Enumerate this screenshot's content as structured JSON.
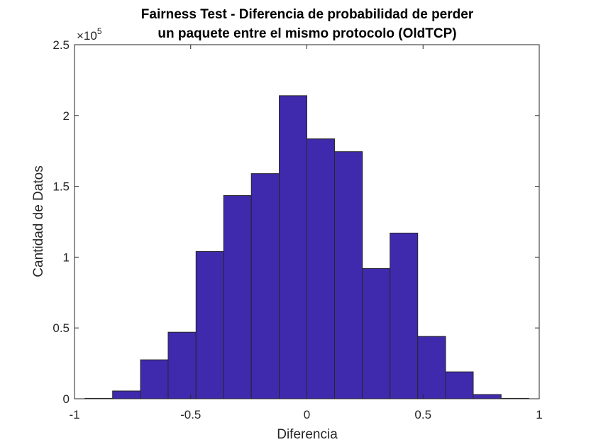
{
  "chart_data": {
    "type": "histogram",
    "title": [
      "Fairness Test - Diferencia de probabilidad de perder",
      "un paquete entre el mismo protocolo (OldTCP)"
    ],
    "xlabel": "Diferencia",
    "ylabel": "Cantidad de Datos",
    "y_exponent_base": "×10",
    "y_exponent_power": "5",
    "xlim": [
      -1,
      1
    ],
    "ylim": [
      0,
      2.5
    ],
    "x_ticks": [
      -1,
      -0.5,
      0,
      0.5,
      1
    ],
    "x_tick_labels": [
      "-1",
      "-0.5",
      "0",
      "0.5",
      "1"
    ],
    "y_ticks": [
      0,
      0.5,
      1,
      1.5,
      2,
      2.5
    ],
    "y_tick_labels": [
      "0",
      "0.5",
      "1",
      "1.5",
      "2",
      "2.5"
    ],
    "bin_edges": [
      -0.955,
      -0.836,
      -0.716,
      -0.597,
      -0.477,
      -0.358,
      -0.239,
      -0.119,
      0,
      0.119,
      0.239,
      0.358,
      0.477,
      0.597,
      0.716,
      0.836,
      0.955
    ],
    "values": [
      0.003,
      0.055,
      0.275,
      0.47,
      1.04,
      1.435,
      1.59,
      2.14,
      1.835,
      1.745,
      0.92,
      1.17,
      0.44,
      0.19,
      0.03,
      0.003
    ],
    "bar_color": "#3F2AAE",
    "bar_edge_color": "#262626",
    "grid": false
  }
}
